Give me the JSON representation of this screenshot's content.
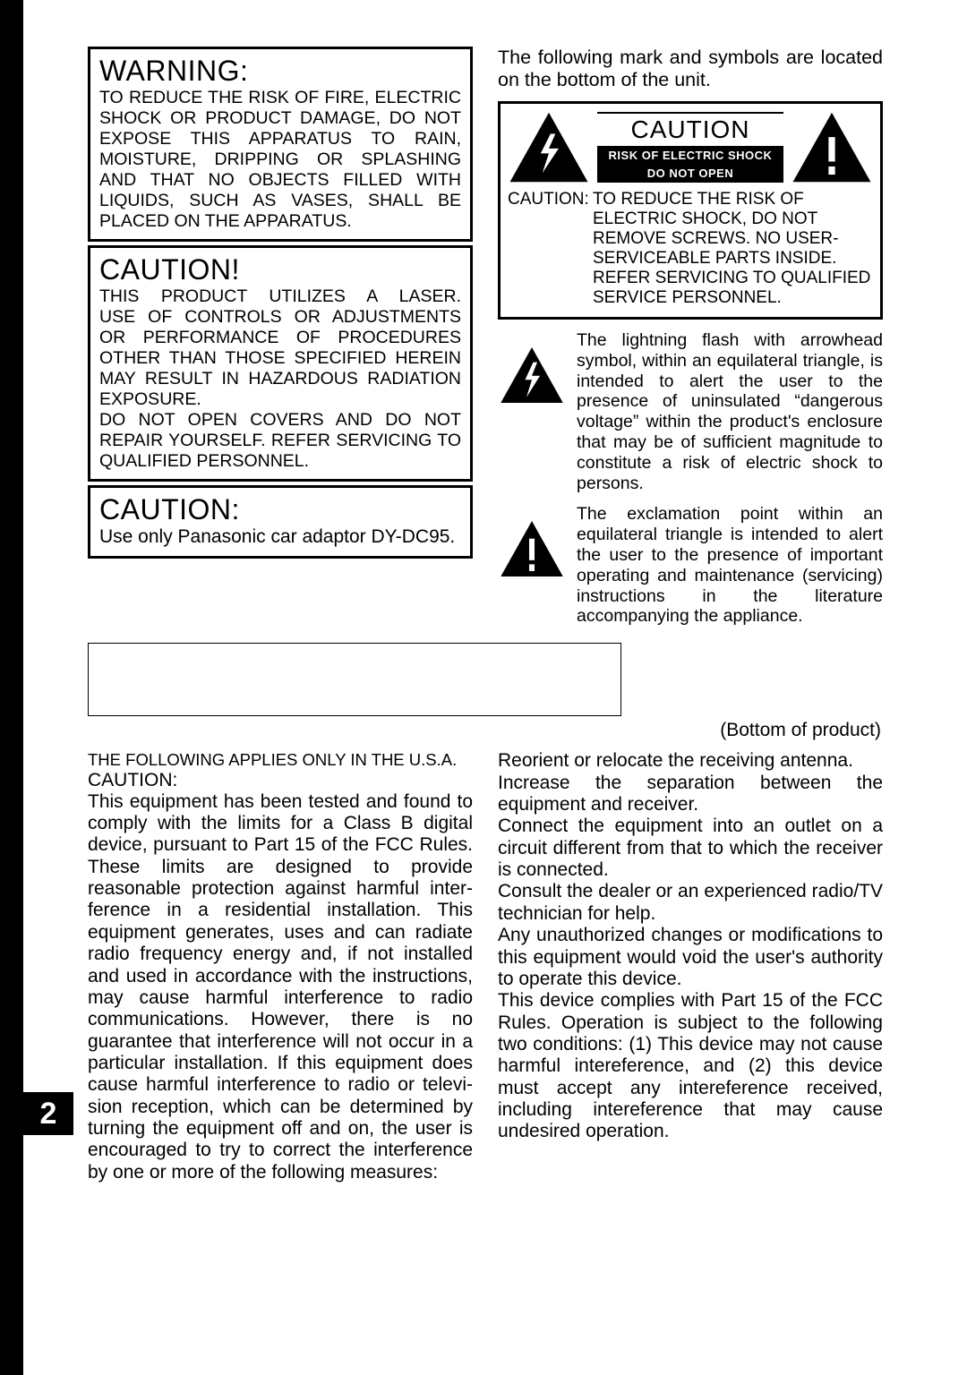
{
  "page_number": "2",
  "left": {
    "warning_heading": "WARNING:",
    "warning_body": "TO REDUCE THE RISK OF FIRE, ELECTRIC SHOCK OR PRODUCT DAMAGE, DO NOT EXPOSE THIS APPARATUS TO RAIN, MOISTURE, DRIPPING OR SPLASHING AND THAT NO OBJECTS FILLED WITH LIQUIDS, SUCH AS VASES, SHALL BE PLACED ON THE APPARATUS.",
    "caution1_heading": "CAUTION!",
    "caution1_line1": "THIS PRODUCT UTILIZES A LASER.",
    "caution1_line2": "USE OF CONTROLS OR ADJUST­MENTS OR PERFORMANCE OF PROCEDURES OTHER THAN THOSE SPECIFIED HEREIN MAY RESULT IN HAZARDOUS RADIA­TION EXPOSURE.",
    "caution1_line3": "DO NOT OPEN COVERS AND DO NOT REPAIR YOURSELF. REFER SERVICING TO QUALIFIED PER­SONNEL.",
    "caution2_heading": "CAUTION:",
    "caution2_body": "Use only Panasonic car adaptor DY-DC95."
  },
  "right": {
    "intro": "The following mark and symbols are lo­cated on the bottom of the unit.",
    "label_caution": "CAUTION",
    "label_risk1": "RISK OF ELECTRIC SHOCK",
    "label_risk2": "DO NOT OPEN",
    "caution_label": "CAUTION:",
    "caution_body": "TO REDUCE THE RISK OF ELECTRIC SHOCK, DO NOT REMOVE SCREWS. NO USER-SERVICEABLE PARTS INSIDE.\nREFER SERVICING TO QUALIFIED SERVICE PERSONNEL.",
    "lightning_text": "The lightning flash with arrowhead symbol, within an equilateral trian­gle, is intended to alert the user to the presence of uninsulated “dangerous voltage” within the product's enclosure that may be of sufficient magnitude to constitute a risk of electric shock to persons.",
    "exclaim_text": "The exclamation point within an equilateral triangle is intended to alert the user to the presence of im­portant operating and maintenance (servicing) instructions in the litera­ture accompanying the appliance."
  },
  "bottom_label": "(Bottom of product)",
  "fcc": {
    "first": "THE FOLLOWING APPLIES ONLY IN THE U.S.A.",
    "caution": "CAUTION:",
    "left_body": "This equipment has been tested and found to comply with the limits for a Class B digital device, pursuant to Part 15 of the FCC Rules. These limits are designed to provide reasonable protection against harmful inter­ference in a residential installation. This equipment generates, uses and can radiate radio frequency energy and, if not installed and used in accordance with the instruc­tions, may cause harmful interference to radio communications. However, there is no guarantee that interference will not occur in a particular installation. If this equipment does cause harmful interference to radio or televi­sion reception, which can be determined by turning the equipment off and on, the user is encouraged to try to correct the interference by one or more of the following measures:",
    "bullets": [
      "Reorient or relocate the receiving an­tenna.",
      "Increase the separation between the equipment and receiver.",
      "Connect the equipment into an outlet on a circuit different from that to which the receiver is connected.",
      "Consult the dealer or an experienced radio/TV technician for help."
    ],
    "tail1": "Any unauthorized changes or modifica­tions to this equipment would void the user's authority to operate this device.",
    "tail2": "This device complies with Part 15 of the FCC Rules. Operation is subject to the following two conditions: (1) This device may not cause harmful intereference, and (2) this device must accept any intereference received, including intereference that may cause undesired operation."
  },
  "colors": {
    "black": "#000000",
    "white": "#ffffff"
  }
}
